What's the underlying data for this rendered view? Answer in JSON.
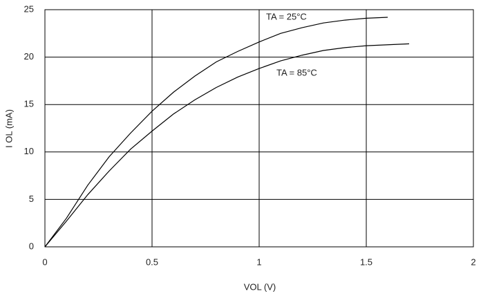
{
  "chart_data": {
    "type": "line",
    "x_label": "VOL (V)",
    "y_label": "I OL (mA)",
    "xlim": [
      0,
      2
    ],
    "xticks": [
      0,
      0.5,
      1,
      1.5,
      2
    ],
    "ylim": [
      0,
      25
    ],
    "yticks": [
      0,
      5,
      10,
      15,
      20,
      25
    ],
    "grid": true,
    "series": [
      {
        "name": "TA = 25°C",
        "color": "#000000",
        "x": [
          0,
          0.1,
          0.2,
          0.3,
          0.4,
          0.5,
          0.6,
          0.7,
          0.8,
          0.9,
          1.0,
          1.1,
          1.2,
          1.3,
          1.4,
          1.5,
          1.6
        ],
        "values": [
          0,
          3,
          6.5,
          9.5,
          12,
          14.3,
          16.3,
          18,
          19.5,
          20.6,
          21.6,
          22.5,
          23.1,
          23.6,
          23.9,
          24.1,
          24.2
        ]
      },
      {
        "name": "TA = 85°C",
        "color": "#000000",
        "x": [
          0,
          0.1,
          0.2,
          0.3,
          0.4,
          0.5,
          0.6,
          0.7,
          0.8,
          0.9,
          1.0,
          1.1,
          1.2,
          1.3,
          1.4,
          1.5,
          1.6,
          1.7
        ],
        "values": [
          0,
          2.7,
          5.5,
          8,
          10.3,
          12.2,
          14,
          15.5,
          16.8,
          17.9,
          18.8,
          19.6,
          20.2,
          20.7,
          21,
          21.2,
          21.3,
          21.4
        ]
      }
    ]
  }
}
